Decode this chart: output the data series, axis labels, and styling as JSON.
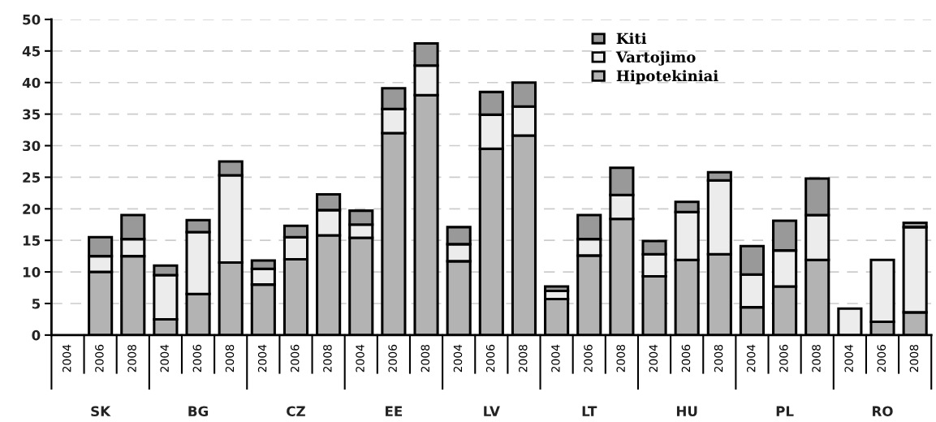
{
  "chart_data": {
    "type": "bar",
    "stacked": true,
    "categories": [
      "2004",
      "2006",
      "2008",
      "2004",
      "2006",
      "2008",
      "2004",
      "2006",
      "2008",
      "2004",
      "2006",
      "2008",
      "2004",
      "2006",
      "2008",
      "2004",
      "2006",
      "2008",
      "2004",
      "2006",
      "2008",
      "2004",
      "2006",
      "2008",
      "2004",
      "2006",
      "2008"
    ],
    "series": [
      {
        "name": "Hipotekiniai",
        "color": "#b3b3b3",
        "values": [
          null,
          10,
          12.5,
          2.5,
          6.5,
          11.5,
          8,
          12,
          15.8,
          15.4,
          32,
          38,
          11.7,
          29.5,
          31.6,
          5.7,
          12.6,
          18.4,
          9.3,
          11.9,
          12.8,
          4.4,
          7.7,
          11.9,
          null,
          2.1,
          3.6
        ]
      },
      {
        "name": "Vartojimo",
        "color": "#ececec",
        "values": [
          null,
          2.5,
          2.7,
          7,
          9.8,
          13.8,
          2.5,
          3.5,
          4,
          2.1,
          3.8,
          4.7,
          2.7,
          5.4,
          4.6,
          1.3,
          2.6,
          3.8,
          3.5,
          7.6,
          11.7,
          5.2,
          5.7,
          7.1,
          4.2,
          9.8,
          13.5
        ]
      },
      {
        "name": "Kiti",
        "color": "#999999",
        "values": [
          null,
          3,
          3.8,
          1.5,
          1.9,
          2.2,
          1.3,
          1.8,
          2.5,
          2.2,
          3.3,
          3.5,
          2.7,
          3.6,
          3.8,
          0.7,
          3.8,
          4.3,
          2.1,
          1.6,
          1.3,
          4.5,
          4.7,
          5.8,
          null,
          null,
          0.7
        ]
      }
    ],
    "annotations": [
      "SK",
      "BG",
      "CZ",
      "EE",
      "LV",
      "LT",
      "HU",
      "PL",
      "RO"
    ],
    "ylim": [
      0,
      50
    ],
    "yticks": [
      0,
      5,
      10,
      15,
      20,
      25,
      30,
      35,
      40,
      45,
      50
    ],
    "grid": "y",
    "legend": "top right"
  }
}
